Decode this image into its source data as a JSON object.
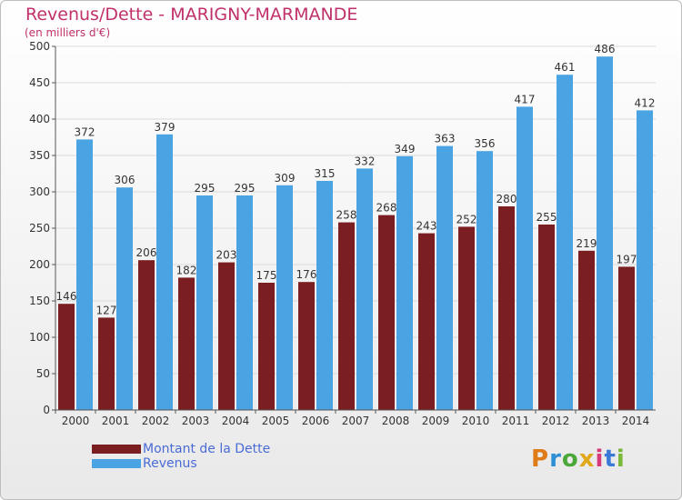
{
  "chart_data": {
    "type": "bar",
    "title": "Revenus/Dette - MARIGNY-MARMANDE",
    "subtitle": "(en milliers d'€)",
    "categories": [
      "2000",
      "2001",
      "2002",
      "2003",
      "2004",
      "2005",
      "2006",
      "2007",
      "2008",
      "2009",
      "2010",
      "2011",
      "2012",
      "2013",
      "2014"
    ],
    "series": [
      {
        "name": "Montant de la Dette",
        "values": [
          146,
          127,
          206,
          182,
          203,
          175,
          176,
          258,
          268,
          243,
          252,
          280,
          255,
          219,
          197
        ],
        "color": "#7a1e22"
      },
      {
        "name": "Revenus",
        "values": [
          372,
          306,
          379,
          295,
          295,
          309,
          315,
          332,
          349,
          363,
          356,
          417,
          461,
          486,
          412
        ],
        "color": "#4aa3e3"
      }
    ],
    "ylim": [
      0,
      500
    ],
    "yticks": [
      0,
      50,
      100,
      150,
      200,
      250,
      300,
      350,
      400,
      450,
      500
    ],
    "grid": true,
    "legend_position": "bottom-left"
  },
  "logo": {
    "text": "Proxiti",
    "colors": [
      "#e07b1a",
      "#2f8fd6",
      "#4aa83a",
      "#e0a81a",
      "#d63a7a",
      "#3a7ad6",
      "#7ab83a"
    ]
  }
}
